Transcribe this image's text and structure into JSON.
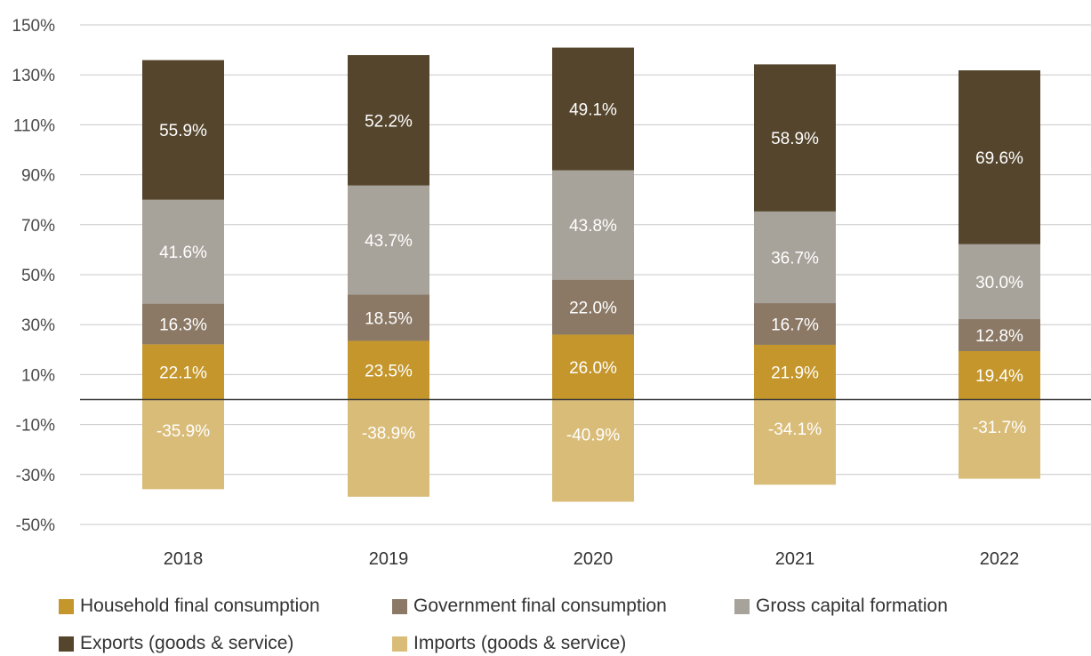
{
  "chart_data": {
    "type": "bar",
    "stacked": true,
    "categories": [
      "2018",
      "2019",
      "2020",
      "2021",
      "2022"
    ],
    "ylim": [
      -50,
      150
    ],
    "yticks": [
      -50,
      -30,
      -10,
      10,
      30,
      50,
      70,
      90,
      110,
      130,
      150
    ],
    "ytick_labels": [
      "-50%",
      "-30%",
      "-10%",
      "10%",
      "30%",
      "50%",
      "70%",
      "90%",
      "110%",
      "130%",
      "150%"
    ],
    "grid": true,
    "legend_position": "bottom",
    "series": [
      {
        "name": "Household final consumption",
        "color": "#c4962b",
        "values": [
          22.1,
          23.5,
          26.0,
          21.9,
          19.4
        ],
        "labels": [
          "22.1%",
          "23.5%",
          "26.0%",
          "21.9%",
          "19.4%"
        ]
      },
      {
        "name": "Government final consumption",
        "color": "#8b7966",
        "values": [
          16.3,
          18.5,
          22.0,
          16.7,
          12.8
        ],
        "labels": [
          "16.3%",
          "18.5%",
          "22.0%",
          "16.7%",
          "12.8%"
        ]
      },
      {
        "name": "Gross capital formation",
        "color": "#a8a39a",
        "values": [
          41.6,
          43.7,
          43.8,
          36.7,
          30.0
        ],
        "labels": [
          "41.6%",
          "43.7%",
          "43.8%",
          "36.7%",
          "30.0%"
        ]
      },
      {
        "name": "Exports (goods & service)",
        "color": "#55452c",
        "values": [
          55.9,
          52.2,
          49.1,
          58.9,
          69.6
        ],
        "labels": [
          "55.9%",
          "52.2%",
          "49.1%",
          "58.9%",
          "69.6%"
        ]
      },
      {
        "name": "Imports (goods & service)",
        "color": "#d9bc78",
        "values": [
          -35.9,
          -38.9,
          -40.9,
          -34.1,
          -31.7
        ],
        "labels": [
          "-35.9%",
          "-38.9%",
          "-40.9%",
          "-34.1%",
          "-31.7%"
        ]
      }
    ]
  }
}
